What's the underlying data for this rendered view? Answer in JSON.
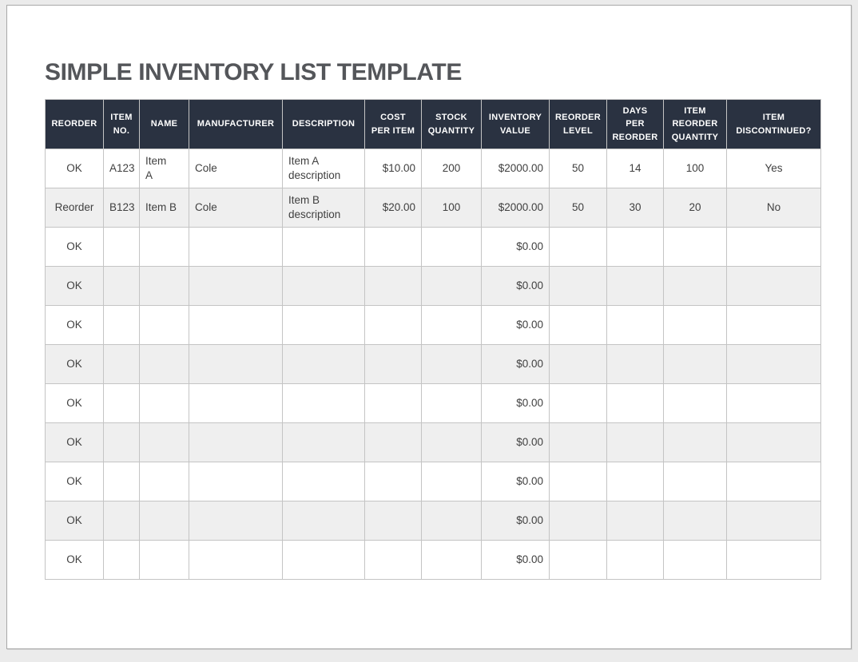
{
  "page": {
    "title": "SIMPLE INVENTORY LIST TEMPLATE"
  },
  "colors": {
    "canvas_bg": "#ebebeb",
    "page_bg": "#ffffff",
    "page_border": "#a8a8a8",
    "header_bg": "#2a3241",
    "header_text": "#ffffff",
    "row_alt_bg": "#efefef",
    "border": "#c4c4c4",
    "cell_text": "#404040",
    "title_text": "#54565a"
  },
  "table": {
    "columns": [
      "REORDER",
      "ITEM\nNO.",
      "NAME",
      "MANUFACTURER",
      "DESCRIPTION",
      "COST\nPER ITEM",
      "STOCK\nQUANTITY",
      "INVENTORY\nVALUE",
      "REORDER\nLEVEL",
      "DAYS\nPER\nREORDER",
      "ITEM\nREORDER\nQUANTITY",
      "ITEM\nDISCONTINUED?"
    ],
    "rows": [
      [
        "OK",
        "A123",
        "Item\nA",
        "Cole",
        "Item A\ndescription",
        "$10.00",
        "200",
        "$2000.00",
        "50",
        "14",
        "100",
        "Yes"
      ],
      [
        "Reorder",
        "B123",
        "Item B",
        "Cole",
        "Item B\ndescription",
        "$20.00",
        "100",
        "$2000.00",
        "50",
        "30",
        "20",
        "No"
      ],
      [
        "OK",
        "",
        "",
        "",
        "",
        "",
        "",
        "$0.00",
        "",
        "",
        "",
        ""
      ],
      [
        "OK",
        "",
        "",
        "",
        "",
        "",
        "",
        "$0.00",
        "",
        "",
        "",
        ""
      ],
      [
        "OK",
        "",
        "",
        "",
        "",
        "",
        "",
        "$0.00",
        "",
        "",
        "",
        ""
      ],
      [
        "OK",
        "",
        "",
        "",
        "",
        "",
        "",
        "$0.00",
        "",
        "",
        "",
        ""
      ],
      [
        "OK",
        "",
        "",
        "",
        "",
        "",
        "",
        "$0.00",
        "",
        "",
        "",
        ""
      ],
      [
        "OK",
        "",
        "",
        "",
        "",
        "",
        "",
        "$0.00",
        "",
        "",
        "",
        ""
      ],
      [
        "OK",
        "",
        "",
        "",
        "",
        "",
        "",
        "$0.00",
        "",
        "",
        "",
        ""
      ],
      [
        "OK",
        "",
        "",
        "",
        "",
        "",
        "",
        "$0.00",
        "",
        "",
        "",
        ""
      ],
      [
        "OK",
        "",
        "",
        "",
        "",
        "",
        "",
        "$0.00",
        "",
        "",
        "",
        ""
      ]
    ]
  }
}
